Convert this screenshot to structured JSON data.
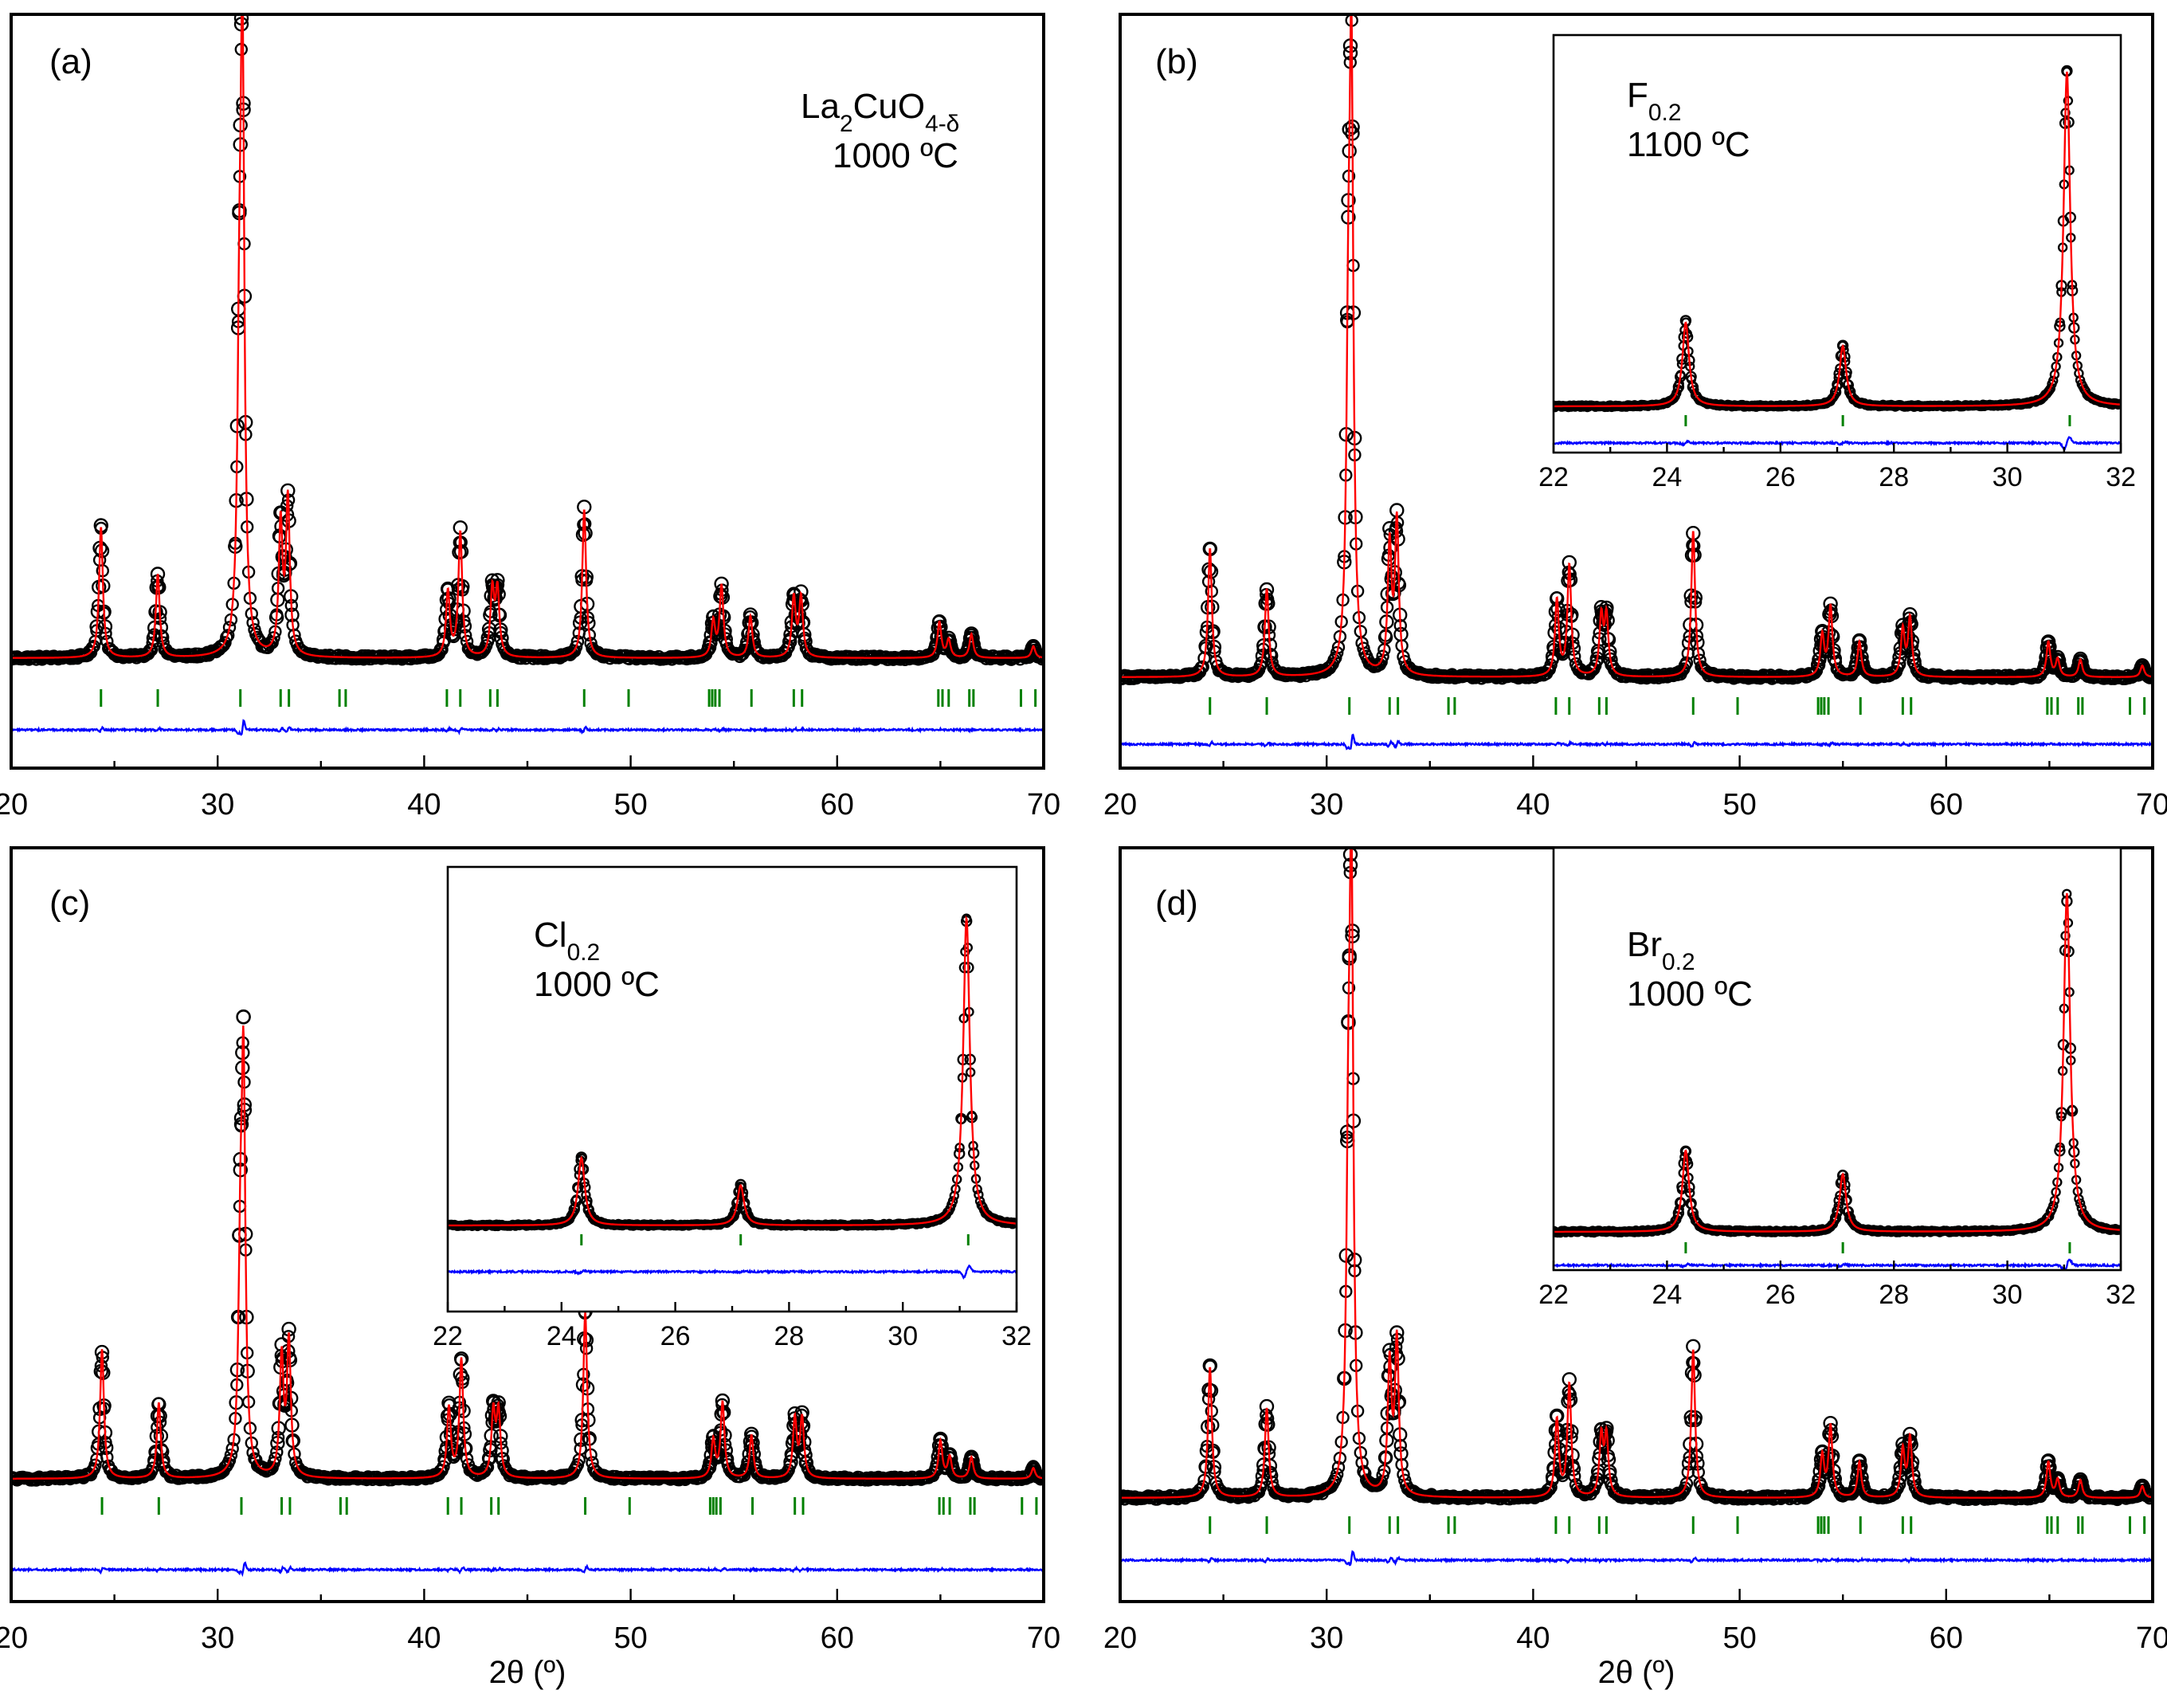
{
  "figure": {
    "xlabel": "2θ (º)"
  },
  "colors": {
    "observed": "#000000",
    "calculated": "#ff0000",
    "difference": "#0000ff",
    "bragg": "#008000"
  },
  "chart_data": [
    {
      "type": "scatter",
      "panel_label": "(a)",
      "sample": {
        "text": "La₂CuO₄₋δ",
        "base": "La",
        "sub1": "2",
        "mid": "CuO",
        "sub2": "4-δ"
      },
      "temperature": "1000 ºC",
      "xlim": [
        20,
        70
      ],
      "xticks": [
        20,
        30,
        40,
        50,
        60,
        70
      ],
      "xlabel": "",
      "ylabel": "",
      "series": [
        {
          "name": "Observed",
          "style": "open circles"
        },
        {
          "name": "Calculated",
          "style": "red line"
        },
        {
          "name": "Difference",
          "style": "blue line"
        },
        {
          "name": "Bragg positions",
          "style": "green ticks"
        }
      ],
      "peaks": [
        [
          24.35,
          0.22
        ],
        [
          27.1,
          0.14
        ],
        [
          31.05,
          0.4
        ],
        [
          31.2,
          1.0
        ],
        [
          33.05,
          0.22
        ],
        [
          33.4,
          0.26
        ],
        [
          41.15,
          0.11
        ],
        [
          41.75,
          0.21
        ],
        [
          43.3,
          0.11
        ],
        [
          43.55,
          0.11
        ],
        [
          47.75,
          0.25
        ],
        [
          54.0,
          0.06
        ],
        [
          54.4,
          0.12
        ],
        [
          55.8,
          0.07
        ],
        [
          57.9,
          0.1
        ],
        [
          58.25,
          0.1
        ],
        [
          64.95,
          0.06
        ],
        [
          65.4,
          0.03
        ],
        [
          66.5,
          0.04
        ],
        [
          69.5,
          0.02
        ]
      ],
      "bragg_positions": [
        24.35,
        27.1,
        31.1,
        33.05,
        33.45,
        35.9,
        36.2,
        41.1,
        41.75,
        43.2,
        43.55,
        47.75,
        49.9,
        53.8,
        53.95,
        54.1,
        54.3,
        55.85,
        57.9,
        58.3,
        64.9,
        65.1,
        65.4,
        66.4,
        66.6,
        68.9,
        69.6
      ],
      "inset": null
    },
    {
      "type": "scatter",
      "panel_label": "(b)",
      "sample": {
        "text": "",
        "base": "",
        "sub1": "",
        "mid": "",
        "sub2": ""
      },
      "temperature": "",
      "xlim": [
        20,
        70
      ],
      "xticks": [
        20,
        30,
        40,
        50,
        60,
        70
      ],
      "xlabel": "",
      "ylabel": "",
      "series": [
        {
          "name": "Observed",
          "style": "open circles"
        },
        {
          "name": "Calculated",
          "style": "red line"
        },
        {
          "name": "Difference",
          "style": "blue line"
        },
        {
          "name": "Bragg positions",
          "style": "green ticks"
        }
      ],
      "peaks": [
        [
          24.35,
          0.22
        ],
        [
          27.1,
          0.15
        ],
        [
          31.05,
          0.45
        ],
        [
          31.2,
          1.0
        ],
        [
          33.05,
          0.22
        ],
        [
          33.4,
          0.26
        ],
        [
          41.15,
          0.13
        ],
        [
          41.75,
          0.19
        ],
        [
          43.3,
          0.1
        ],
        [
          43.55,
          0.1
        ],
        [
          47.75,
          0.25
        ],
        [
          54.0,
          0.07
        ],
        [
          54.4,
          0.12
        ],
        [
          55.8,
          0.06
        ],
        [
          57.9,
          0.08
        ],
        [
          58.25,
          0.1
        ],
        [
          64.95,
          0.06
        ],
        [
          65.4,
          0.03
        ],
        [
          66.5,
          0.03
        ],
        [
          69.5,
          0.02
        ]
      ],
      "bragg_positions": [
        24.35,
        27.1,
        31.1,
        33.05,
        33.45,
        35.9,
        36.2,
        41.1,
        41.75,
        43.2,
        43.55,
        47.75,
        49.9,
        53.8,
        53.95,
        54.1,
        54.3,
        55.85,
        57.9,
        58.3,
        64.9,
        65.1,
        65.4,
        66.4,
        66.6,
        68.9,
        69.6
      ],
      "inset": {
        "xlim": [
          22,
          32
        ],
        "xticks": [
          22,
          24,
          26,
          28,
          30,
          32
        ],
        "sample": {
          "base": "F",
          "sub": "0.2",
          "text": "F₀.₂"
        },
        "temperature": "1100 ºC",
        "peaks": [
          [
            24.33,
            0.25
          ],
          [
            27.1,
            0.18
          ],
          [
            31.05,
            1.0
          ]
        ],
        "bragg_positions": [
          24.33,
          27.1,
          31.1
        ]
      }
    },
    {
      "type": "scatter",
      "panel_label": "(c)",
      "sample": {
        "text": "",
        "base": "",
        "sub1": "",
        "mid": "",
        "sub2": ""
      },
      "temperature": "",
      "xlim": [
        20,
        70
      ],
      "xticks": [
        20,
        30,
        40,
        50,
        60,
        70
      ],
      "xlabel": "2θ (º)",
      "ylabel": "",
      "series": [
        {
          "name": "Observed",
          "style": "open circles"
        },
        {
          "name": "Calculated",
          "style": "red line"
        },
        {
          "name": "Difference",
          "style": "blue line"
        },
        {
          "name": "Bragg positions",
          "style": "green ticks"
        }
      ],
      "peaks": [
        [
          24.4,
          0.24
        ],
        [
          27.15,
          0.14
        ],
        [
          31.1,
          0.33
        ],
        [
          31.25,
          0.72
        ],
        [
          33.1,
          0.22
        ],
        [
          33.45,
          0.25
        ],
        [
          41.2,
          0.13
        ],
        [
          41.8,
          0.22
        ],
        [
          43.35,
          0.12
        ],
        [
          43.6,
          0.12
        ],
        [
          47.8,
          0.31
        ],
        [
          54.0,
          0.07
        ],
        [
          54.45,
          0.14
        ],
        [
          55.85,
          0.08
        ],
        [
          57.95,
          0.11
        ],
        [
          58.3,
          0.11
        ],
        [
          65.0,
          0.07
        ],
        [
          65.45,
          0.04
        ],
        [
          66.5,
          0.04
        ],
        [
          69.5,
          0.02
        ]
      ],
      "bragg_positions": [
        24.4,
        27.15,
        31.15,
        33.1,
        33.5,
        35.95,
        36.25,
        41.15,
        41.8,
        43.25,
        43.6,
        47.8,
        49.95,
        53.85,
        54.0,
        54.15,
        54.35,
        55.9,
        57.95,
        58.35,
        64.95,
        65.15,
        65.45,
        66.45,
        66.65,
        68.95,
        69.65
      ],
      "inset": {
        "xlim": [
          22,
          32
        ],
        "xticks": [
          22,
          24,
          26,
          28,
          30,
          32
        ],
        "sample": {
          "base": "Cl",
          "sub": "0.2",
          "text": "Cl₀.₂"
        },
        "temperature": "1000 ºC",
        "peaks": [
          [
            24.35,
            0.22
          ],
          [
            27.15,
            0.13
          ],
          [
            31.12,
            1.0
          ]
        ],
        "bragg_positions": [
          24.35,
          27.15,
          31.15
        ]
      }
    },
    {
      "type": "scatter",
      "panel_label": "(d)",
      "sample": {
        "text": "",
        "base": "",
        "sub1": "",
        "mid": "",
        "sub2": ""
      },
      "temperature": "",
      "xlim": [
        20,
        70
      ],
      "xticks": [
        20,
        30,
        40,
        50,
        60,
        70
      ],
      "xlabel": "2θ (º)",
      "ylabel": "",
      "series": [
        {
          "name": "Observed",
          "style": "open circles"
        },
        {
          "name": "Calculated",
          "style": "red line"
        },
        {
          "name": "Difference",
          "style": "blue line"
        },
        {
          "name": "Bragg positions",
          "style": "green ticks"
        }
      ],
      "peaks": [
        [
          24.35,
          0.22
        ],
        [
          27.1,
          0.15
        ],
        [
          31.05,
          0.45
        ],
        [
          31.2,
          1.0
        ],
        [
          33.05,
          0.22
        ],
        [
          33.4,
          0.26
        ],
        [
          41.15,
          0.13
        ],
        [
          41.75,
          0.19
        ],
        [
          43.3,
          0.1
        ],
        [
          43.55,
          0.1
        ],
        [
          47.75,
          0.25
        ],
        [
          54.0,
          0.07
        ],
        [
          54.4,
          0.12
        ],
        [
          55.8,
          0.06
        ],
        [
          57.9,
          0.08
        ],
        [
          58.25,
          0.1
        ],
        [
          64.95,
          0.06
        ],
        [
          65.4,
          0.03
        ],
        [
          66.5,
          0.03
        ],
        [
          69.5,
          0.02
        ]
      ],
      "bragg_positions": [
        24.35,
        27.1,
        31.1,
        33.05,
        33.45,
        35.9,
        36.2,
        41.1,
        41.75,
        43.2,
        43.55,
        47.75,
        49.9,
        53.8,
        53.95,
        54.1,
        54.3,
        55.85,
        57.9,
        58.3,
        64.9,
        65.1,
        65.4,
        66.4,
        66.6,
        68.9,
        69.6
      ],
      "inset": {
        "xlim": [
          22,
          32
        ],
        "xticks": [
          22,
          24,
          26,
          28,
          30,
          32
        ],
        "sample": {
          "base": "Br",
          "sub": "0.2",
          "text": "Br₀.₂"
        },
        "temperature": "1000 ºC",
        "peaks": [
          [
            24.33,
            0.24
          ],
          [
            27.1,
            0.17
          ],
          [
            31.05,
            1.0
          ]
        ],
        "bragg_positions": [
          24.33,
          27.1,
          31.1
        ]
      }
    }
  ]
}
